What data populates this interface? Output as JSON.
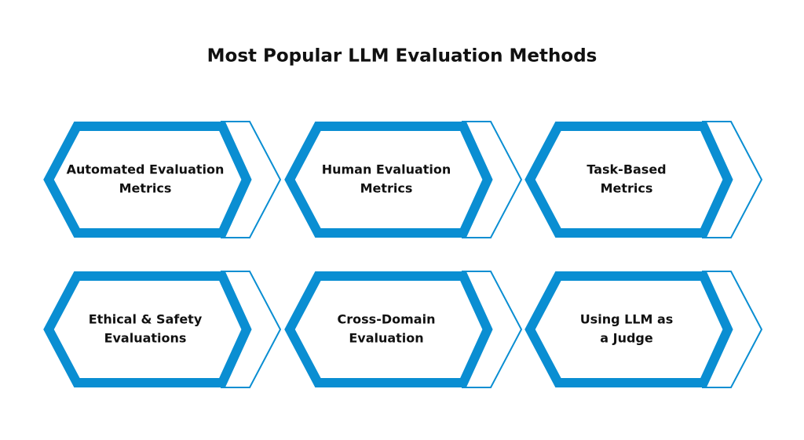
{
  "title": "Most Popular LLM Evaluation Methods",
  "items": [
    {
      "lines": [
        "Automated Evaluation",
        "Metrics"
      ]
    },
    {
      "lines": [
        "Human Evaluation",
        "Metrics"
      ]
    },
    {
      "lines": [
        "Task-Based",
        "Metrics"
      ]
    },
    {
      "lines": [
        "Ethical & Safety",
        "Evaluations"
      ]
    },
    {
      "lines": [
        "Cross-Domain",
        "Evaluation"
      ]
    },
    {
      "lines": [
        "Using LLM as",
        "a Judge"
      ]
    }
  ]
}
